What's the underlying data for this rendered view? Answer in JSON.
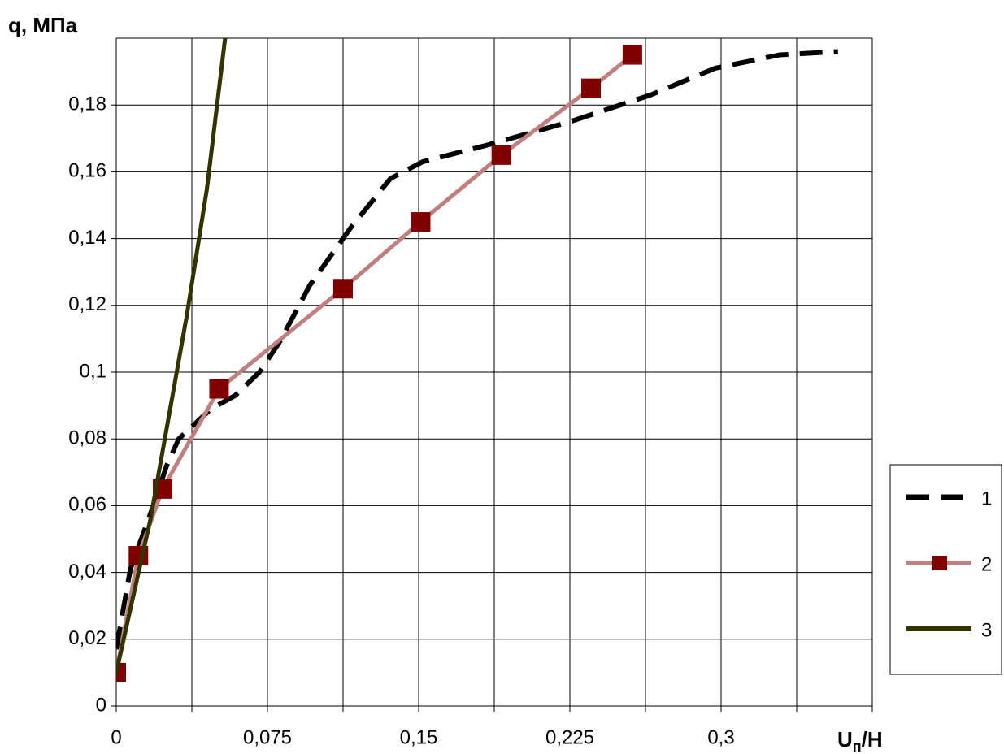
{
  "chart_data": {
    "type": "line",
    "y_label": "q, МПа",
    "x_label_parts": [
      "U",
      "п",
      "/H"
    ],
    "xlim": [
      0,
      0.375
    ],
    "ylim": [
      0,
      0.2
    ],
    "xticks": [
      0,
      {
        "value": 0.075,
        "label": "0,075"
      },
      {
        "value": 0.15,
        "label": "0,15"
      },
      {
        "value": 0.225,
        "label": "0,225"
      },
      {
        "value": 0.3,
        "label": "0,3"
      }
    ],
    "x_minor_grid": [
      0.0375,
      0.1125,
      0.1875,
      0.2625,
      0.3375,
      0.375
    ],
    "yticks": [
      0,
      {
        "value": 0.02,
        "label": "0,02"
      },
      {
        "value": 0.04,
        "label": "0,04"
      },
      {
        "value": 0.06,
        "label": "0,06"
      },
      {
        "value": 0.08,
        "label": "0,08"
      },
      {
        "value": 0.1,
        "label": "0,1"
      },
      {
        "value": 0.12,
        "label": "0,12"
      },
      {
        "value": 0.14,
        "label": "0,14"
      },
      {
        "value": 0.16,
        "label": "0,16"
      },
      {
        "value": 0.18,
        "label": "0,18"
      }
    ],
    "grid": true,
    "legend": "right",
    "series": [
      {
        "name": "1",
        "color": "#000000",
        "dash": true,
        "x": [
          0,
          0.007,
          0.019,
          0.025,
          0.031,
          0.047,
          0.059,
          0.071,
          0.081,
          0.096,
          0.116,
          0.136,
          0.152,
          0.184,
          0.225,
          0.265,
          0.297,
          0.329,
          0.358
        ],
        "values": [
          0.017,
          0.041,
          0.061,
          0.072,
          0.08,
          0.089,
          0.093,
          0.1,
          0.109,
          0.126,
          0.143,
          0.158,
          0.163,
          0.168,
          0.175,
          0.183,
          0.191,
          0.195,
          0.196
        ]
      },
      {
        "name": "2",
        "color": "#c08080",
        "marker_color": "#800000",
        "x": [
          0,
          0.011,
          0.023,
          0.051,
          0.1125,
          0.151,
          0.191,
          0.2355,
          0.256
        ],
        "values": [
          0.01,
          0.045,
          0.065,
          0.095,
          0.125,
          0.145,
          0.165,
          0.185,
          0.195
        ]
      },
      {
        "name": "3",
        "color": "#333300",
        "x": [
          0,
          0.007,
          0.017,
          0.035,
          0.045,
          0.054
        ],
        "values": [
          0.01,
          0.029,
          0.056,
          0.117,
          0.155,
          0.2
        ]
      }
    ]
  }
}
